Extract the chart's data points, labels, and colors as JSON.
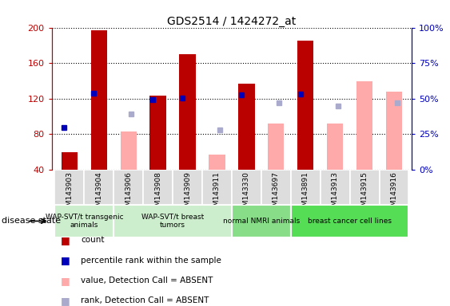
{
  "title": "GDS2514 / 1424272_at",
  "samples": [
    "GSM143903",
    "GSM143904",
    "GSM143906",
    "GSM143908",
    "GSM143909",
    "GSM143911",
    "GSM143330",
    "GSM143697",
    "GSM143891",
    "GSM143913",
    "GSM143915",
    "GSM143916"
  ],
  "count_values": [
    60,
    197,
    null,
    123,
    170,
    null,
    137,
    null,
    185,
    null,
    null,
    null
  ],
  "count_absent_values": [
    null,
    null,
    83,
    null,
    null,
    57,
    null,
    92,
    null,
    92,
    140,
    128
  ],
  "percentile_values": [
    88,
    126,
    null,
    119,
    121,
    null,
    124,
    null,
    125,
    null,
    null,
    null
  ],
  "rank_absent_values": [
    null,
    null,
    103,
    null,
    null,
    85,
    null,
    115,
    null,
    112,
    null,
    115
  ],
  "group_defs": [
    {
      "start": 0,
      "end": 1,
      "color": "#cceecc",
      "label": "WAP-SVT/t transgenic\nanimals"
    },
    {
      "start": 2,
      "end": 5,
      "color": "#cceecc",
      "label": "WAP-SVT/t breast\ntumors"
    },
    {
      "start": 6,
      "end": 7,
      "color": "#88dd88",
      "label": "normal NMRI animals"
    },
    {
      "start": 8,
      "end": 11,
      "color": "#55dd55",
      "label": "breast cancer cell lines"
    }
  ],
  "ylim": [
    40,
    200
  ],
  "yticks": [
    40,
    80,
    120,
    160,
    200
  ],
  "ytick_labels_left": [
    "40",
    "80",
    "120",
    "160",
    "200"
  ],
  "ytick_labels_right": [
    "0%",
    "25%",
    "50%",
    "75%",
    "100%"
  ],
  "red_color": "#bb0000",
  "pink_color": "#ffaaaa",
  "blue_color": "#0000bb",
  "lightblue_color": "#aaaacc",
  "bg_color": "#ffffff",
  "disease_state_label": "disease state",
  "legend_items": [
    {
      "color": "#bb0000",
      "label": "count"
    },
    {
      "color": "#0000bb",
      "label": "percentile rank within the sample"
    },
    {
      "color": "#ffaaaa",
      "label": "value, Detection Call = ABSENT"
    },
    {
      "color": "#aaaacc",
      "label": "rank, Detection Call = ABSENT"
    }
  ]
}
